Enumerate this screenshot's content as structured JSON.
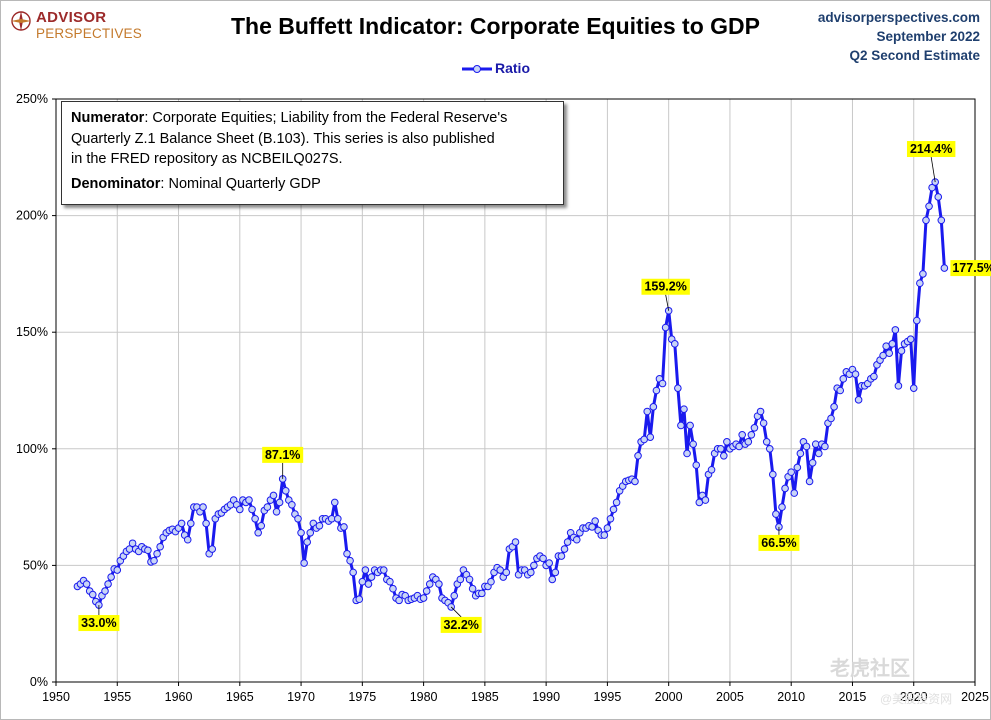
{
  "header": {
    "logo_line1": "ADVISOR",
    "logo_line2": "PERSPECTIVES",
    "title": "The Buffett Indicator: Corporate Equities to GDP",
    "source_line1": "advisorperspectives.com",
    "source_line2": "September 2022",
    "source_line3": "Q2 Second Estimate"
  },
  "legend": {
    "label": "Ratio"
  },
  "note": {
    "numerator_label": "Numerator",
    "numerator_line1": ": Corporate Equities; Liability from the Federal Reserve's",
    "numerator_line2": "Quarterly Z.1 Balance Sheet (B.103). This series is also published",
    "numerator_line3": "in the FRED repository as NCBEILQ027S.",
    "denominator_label": "Denominator",
    "denominator_text": ": Nominal Quarterly GDP"
  },
  "watermark": {
    "text": "老虎社区",
    "sub": "@美股投资网"
  },
  "colors": {
    "series": "#1a1aee",
    "marker_fill": "#c8d4f6",
    "callout_bg": "#ffff00",
    "grid": "#c8c8c8"
  },
  "chart_data": {
    "type": "line",
    "title": "The Buffett Indicator: Corporate Equities to GDP",
    "xlim": [
      1950,
      2025
    ],
    "ylim": [
      0,
      250
    ],
    "x_ticks": [
      "1950",
      "1955",
      "1960",
      "1965",
      "1970",
      "1975",
      "1980",
      "1985",
      "1990",
      "1995",
      "2000",
      "2005",
      "2010",
      "2015",
      "2020",
      "2025"
    ],
    "y_ticks": [
      "0%",
      "50%",
      "100%",
      "150%",
      "200%",
      "250%"
    ],
    "grid": true,
    "legend_position": "top-center",
    "series": [
      {
        "name": "Ratio",
        "points": [
          [
            1951.75,
            41
          ],
          [
            1952,
            42
          ],
          [
            1952.25,
            43.5
          ],
          [
            1952.5,
            42
          ],
          [
            1952.75,
            39
          ],
          [
            1953,
            37.5
          ],
          [
            1953.25,
            34.5
          ],
          [
            1953.5,
            33
          ],
          [
            1953.75,
            37
          ],
          [
            1954,
            39
          ],
          [
            1954.25,
            42
          ],
          [
            1954.5,
            45
          ],
          [
            1954.75,
            48.5
          ],
          [
            1955,
            48
          ],
          [
            1955.25,
            52
          ],
          [
            1955.5,
            54
          ],
          [
            1955.75,
            56
          ],
          [
            1956,
            57
          ],
          [
            1956.25,
            59.5
          ],
          [
            1956.5,
            57
          ],
          [
            1956.75,
            56
          ],
          [
            1957,
            58
          ],
          [
            1957.25,
            57
          ],
          [
            1957.5,
            56.5
          ],
          [
            1957.75,
            51.5
          ],
          [
            1958,
            52
          ],
          [
            1958.25,
            55
          ],
          [
            1958.5,
            58
          ],
          [
            1958.75,
            62
          ],
          [
            1959,
            64
          ],
          [
            1959.25,
            65
          ],
          [
            1959.5,
            65.5
          ],
          [
            1959.75,
            64.5
          ],
          [
            1960,
            66
          ],
          [
            1960.25,
            68
          ],
          [
            1960.5,
            63
          ],
          [
            1960.75,
            61
          ],
          [
            1961,
            68
          ],
          [
            1961.25,
            75
          ],
          [
            1961.5,
            75
          ],
          [
            1961.75,
            73
          ],
          [
            1962,
            75
          ],
          [
            1962.25,
            68
          ],
          [
            1962.5,
            55
          ],
          [
            1962.75,
            57
          ],
          [
            1963,
            70
          ],
          [
            1963.25,
            72
          ],
          [
            1963.5,
            72.5
          ],
          [
            1963.75,
            74
          ],
          [
            1964,
            75
          ],
          [
            1964.25,
            76
          ],
          [
            1964.5,
            78
          ],
          [
            1964.75,
            76
          ],
          [
            1965,
            74
          ],
          [
            1965.25,
            78
          ],
          [
            1965.5,
            77
          ],
          [
            1965.75,
            78
          ],
          [
            1966,
            74
          ],
          [
            1966.25,
            70
          ],
          [
            1966.5,
            64
          ],
          [
            1966.75,
            67
          ],
          [
            1967,
            73.5
          ],
          [
            1967.25,
            75
          ],
          [
            1967.5,
            78
          ],
          [
            1967.75,
            80
          ],
          [
            1968,
            73
          ],
          [
            1968.25,
            77
          ],
          [
            1968.5,
            87.1
          ],
          [
            1968.75,
            82
          ],
          [
            1969,
            78
          ],
          [
            1969.25,
            76
          ],
          [
            1969.5,
            72
          ],
          [
            1969.75,
            70
          ],
          [
            1970,
            64
          ],
          [
            1970.25,
            51
          ],
          [
            1970.5,
            60
          ],
          [
            1970.75,
            64
          ],
          [
            1971,
            68
          ],
          [
            1971.25,
            66
          ],
          [
            1971.5,
            67
          ],
          [
            1971.75,
            70
          ],
          [
            1972,
            70
          ],
          [
            1972.25,
            69
          ],
          [
            1972.5,
            70
          ],
          [
            1972.75,
            77
          ],
          [
            1973,
            70
          ],
          [
            1973.25,
            66
          ],
          [
            1973.5,
            66.5
          ],
          [
            1973.75,
            55
          ],
          [
            1974,
            52
          ],
          [
            1974.25,
            47
          ],
          [
            1974.5,
            35
          ],
          [
            1974.75,
            35.5
          ],
          [
            1975,
            43
          ],
          [
            1975.25,
            48
          ],
          [
            1975.5,
            42
          ],
          [
            1975.75,
            45
          ],
          [
            1976,
            48
          ],
          [
            1976.25,
            47
          ],
          [
            1976.5,
            48
          ],
          [
            1976.75,
            48
          ],
          [
            1977,
            44
          ],
          [
            1977.25,
            43
          ],
          [
            1977.5,
            40
          ],
          [
            1977.75,
            36
          ],
          [
            1978,
            35
          ],
          [
            1978.25,
            37.5
          ],
          [
            1978.5,
            37
          ],
          [
            1978.75,
            35
          ],
          [
            1979,
            35.5
          ],
          [
            1979.25,
            36
          ],
          [
            1979.5,
            37
          ],
          [
            1979.75,
            35.5
          ],
          [
            1980,
            36
          ],
          [
            1980.25,
            39
          ],
          [
            1980.5,
            42
          ],
          [
            1980.75,
            45
          ],
          [
            1981,
            44
          ],
          [
            1981.25,
            42
          ],
          [
            1981.5,
            36
          ],
          [
            1981.75,
            35
          ],
          [
            1982,
            34
          ],
          [
            1982.25,
            32.2
          ],
          [
            1982.5,
            37
          ],
          [
            1982.75,
            42
          ],
          [
            1983,
            44
          ],
          [
            1983.25,
            48
          ],
          [
            1983.5,
            46
          ],
          [
            1983.75,
            44
          ],
          [
            1984,
            40
          ],
          [
            1984.25,
            37
          ],
          [
            1984.5,
            38
          ],
          [
            1984.75,
            38
          ],
          [
            1985,
            41
          ],
          [
            1985.25,
            41
          ],
          [
            1985.5,
            43
          ],
          [
            1985.75,
            47
          ],
          [
            1986,
            49
          ],
          [
            1986.25,
            48
          ],
          [
            1986.5,
            45
          ],
          [
            1986.75,
            47
          ],
          [
            1987,
            57
          ],
          [
            1987.25,
            58
          ],
          [
            1987.5,
            60
          ],
          [
            1987.75,
            46
          ],
          [
            1988,
            48
          ],
          [
            1988.25,
            48
          ],
          [
            1988.5,
            46
          ],
          [
            1988.75,
            47
          ],
          [
            1989,
            50
          ],
          [
            1989.25,
            53
          ],
          [
            1989.5,
            54
          ],
          [
            1989.75,
            53
          ],
          [
            1990,
            50
          ],
          [
            1990.25,
            51
          ],
          [
            1990.5,
            44
          ],
          [
            1990.75,
            47
          ],
          [
            1991,
            54
          ],
          [
            1991.25,
            54
          ],
          [
            1991.5,
            57
          ],
          [
            1991.75,
            60
          ],
          [
            1992,
            64
          ],
          [
            1992.25,
            62
          ],
          [
            1992.5,
            61
          ],
          [
            1992.75,
            64
          ],
          [
            1993,
            66
          ],
          [
            1993.25,
            66
          ],
          [
            1993.5,
            67
          ],
          [
            1993.75,
            66.5
          ],
          [
            1994,
            69
          ],
          [
            1994.25,
            65
          ],
          [
            1994.5,
            63
          ],
          [
            1994.75,
            63
          ],
          [
            1995,
            66
          ],
          [
            1995.25,
            70
          ],
          [
            1995.5,
            74
          ],
          [
            1995.75,
            77
          ],
          [
            1996,
            82
          ],
          [
            1996.25,
            84
          ],
          [
            1996.5,
            86
          ],
          [
            1996.75,
            86.5
          ],
          [
            1997,
            87
          ],
          [
            1997.25,
            86
          ],
          [
            1997.5,
            97
          ],
          [
            1997.75,
            103
          ],
          [
            1998,
            104
          ],
          [
            1998.25,
            116
          ],
          [
            1998.5,
            105
          ],
          [
            1998.75,
            118
          ],
          [
            1999,
            125
          ],
          [
            1999.25,
            130
          ],
          [
            1999.5,
            128
          ],
          [
            1999.75,
            152
          ],
          [
            2000,
            159.2
          ],
          [
            2000.25,
            147
          ],
          [
            2000.5,
            145
          ],
          [
            2000.75,
            126
          ],
          [
            2001,
            110
          ],
          [
            2001.25,
            117
          ],
          [
            2001.5,
            98
          ],
          [
            2001.75,
            110
          ],
          [
            2002,
            102
          ],
          [
            2002.25,
            93
          ],
          [
            2002.5,
            77
          ],
          [
            2002.75,
            80
          ],
          [
            2003,
            78
          ],
          [
            2003.25,
            89
          ],
          [
            2003.5,
            91
          ],
          [
            2003.75,
            98
          ],
          [
            2004,
            100
          ],
          [
            2004.25,
            100
          ],
          [
            2004.5,
            97
          ],
          [
            2004.75,
            103
          ],
          [
            2005,
            100
          ],
          [
            2005.25,
            101
          ],
          [
            2005.5,
            102
          ],
          [
            2005.75,
            101
          ],
          [
            2006,
            106
          ],
          [
            2006.25,
            102
          ],
          [
            2006.5,
            103
          ],
          [
            2006.75,
            106
          ],
          [
            2007,
            109
          ],
          [
            2007.25,
            114
          ],
          [
            2007.5,
            116
          ],
          [
            2007.75,
            111
          ],
          [
            2008,
            103
          ],
          [
            2008.25,
            100
          ],
          [
            2008.5,
            89
          ],
          [
            2008.75,
            72
          ],
          [
            2009,
            66.5
          ],
          [
            2009.25,
            75
          ],
          [
            2009.5,
            83
          ],
          [
            2009.75,
            88
          ],
          [
            2010,
            90
          ],
          [
            2010.25,
            81
          ],
          [
            2010.5,
            92
          ],
          [
            2010.75,
            98
          ],
          [
            2011,
            103
          ],
          [
            2011.25,
            101
          ],
          [
            2011.5,
            86
          ],
          [
            2011.75,
            94
          ],
          [
            2012,
            102
          ],
          [
            2012.25,
            98
          ],
          [
            2012.5,
            102
          ],
          [
            2012.75,
            101
          ],
          [
            2013,
            111
          ],
          [
            2013.25,
            113
          ],
          [
            2013.5,
            118
          ],
          [
            2013.75,
            126
          ],
          [
            2014,
            125
          ],
          [
            2014.25,
            130
          ],
          [
            2014.5,
            133
          ],
          [
            2014.75,
            132
          ],
          [
            2015,
            134
          ],
          [
            2015.25,
            132
          ],
          [
            2015.5,
            121
          ],
          [
            2015.75,
            127
          ],
          [
            2016,
            127
          ],
          [
            2016.25,
            128
          ],
          [
            2016.5,
            130
          ],
          [
            2016.75,
            131
          ],
          [
            2017,
            136
          ],
          [
            2017.25,
            138
          ],
          [
            2017.5,
            140
          ],
          [
            2017.75,
            144
          ],
          [
            2018,
            141
          ],
          [
            2018.25,
            145
          ],
          [
            2018.5,
            151
          ],
          [
            2018.75,
            127
          ],
          [
            2019,
            142
          ],
          [
            2019.25,
            145
          ],
          [
            2019.5,
            146
          ],
          [
            2019.75,
            147
          ],
          [
            2020,
            126
          ],
          [
            2020.25,
            155
          ],
          [
            2020.5,
            171
          ],
          [
            2020.75,
            175
          ],
          [
            2021,
            198
          ],
          [
            2021.25,
            204
          ],
          [
            2021.5,
            212
          ],
          [
            2021.75,
            214.4
          ],
          [
            2022,
            208
          ],
          [
            2022.25,
            198
          ],
          [
            2022.5,
            177.5
          ]
        ]
      }
    ],
    "annotations": [
      {
        "label": "33.0%",
        "x": 1953.5,
        "y": 33.0
      },
      {
        "label": "87.1%",
        "x": 1968.5,
        "y": 87.1
      },
      {
        "label": "32.2%",
        "x": 1982.25,
        "y": 32.2
      },
      {
        "label": "159.2%",
        "x": 2000,
        "y": 159.2
      },
      {
        "label": "66.5%",
        "x": 2009,
        "y": 66.5
      },
      {
        "label": "214.4%",
        "x": 2021.75,
        "y": 214.4
      },
      {
        "label": "177.5%",
        "x": 2022.5,
        "y": 177.5
      }
    ]
  }
}
